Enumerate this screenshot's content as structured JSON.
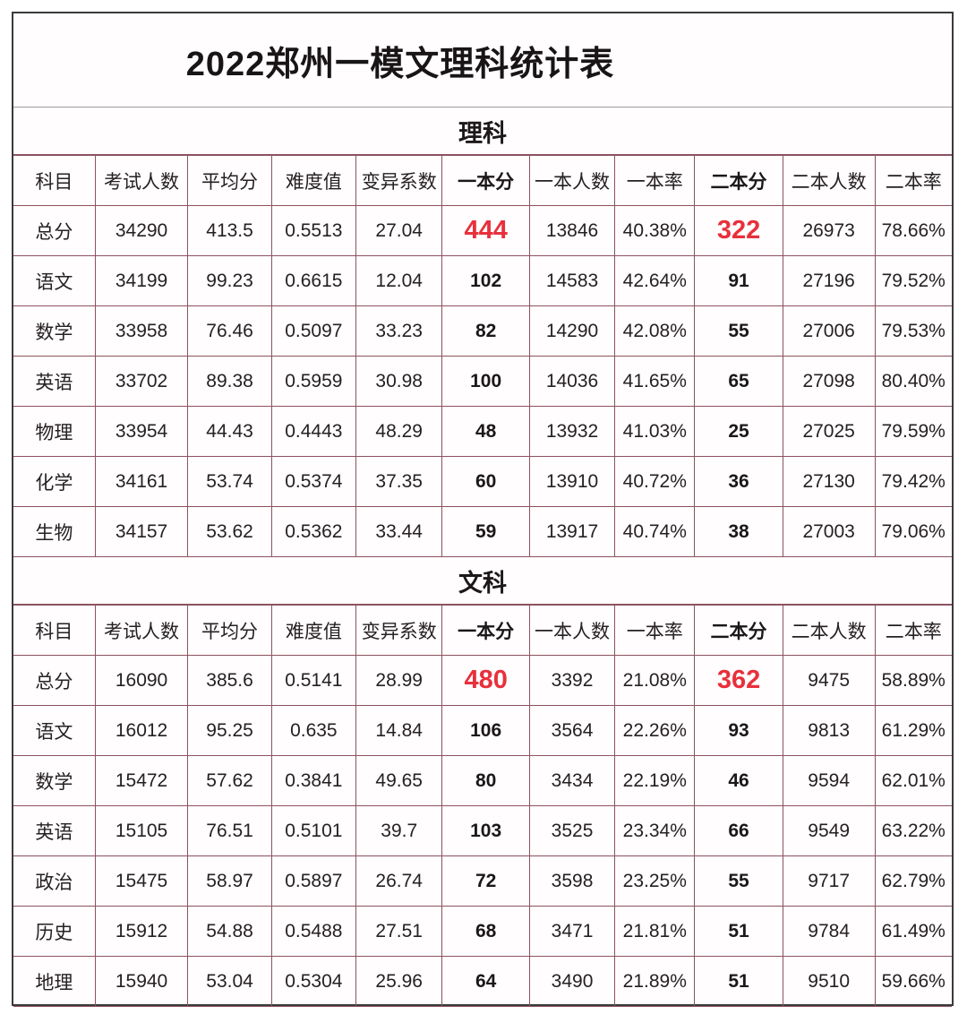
{
  "title": "2022郑州一模文理科统计表",
  "columns": [
    "科目",
    "考试人数",
    "平均分",
    "难度值",
    "变异系数",
    "一本分",
    "一本人数",
    "一本率",
    "二本分",
    "二本人数",
    "二本率"
  ],
  "bold_column_indices": [
    5,
    8
  ],
  "sections": [
    {
      "name": "理科",
      "rows": [
        [
          "总分",
          "34290",
          "413.5",
          "0.5513",
          "27.04",
          "444",
          "13846",
          "40.38%",
          "322",
          "26973",
          "78.66%"
        ],
        [
          "语文",
          "34199",
          "99.23",
          "0.6615",
          "12.04",
          "102",
          "14583",
          "42.64%",
          "91",
          "27196",
          "79.52%"
        ],
        [
          "数学",
          "33958",
          "76.46",
          "0.5097",
          "33.23",
          "82",
          "14290",
          "42.08%",
          "55",
          "27006",
          "79.53%"
        ],
        [
          "英语",
          "33702",
          "89.38",
          "0.5959",
          "30.98",
          "100",
          "14036",
          "41.65%",
          "65",
          "27098",
          "80.40%"
        ],
        [
          "物理",
          "33954",
          "44.43",
          "0.4443",
          "48.29",
          "48",
          "13932",
          "41.03%",
          "25",
          "27025",
          "79.59%"
        ],
        [
          "化学",
          "34161",
          "53.74",
          "0.5374",
          "37.35",
          "60",
          "13910",
          "40.72%",
          "36",
          "27130",
          "79.42%"
        ],
        [
          "生物",
          "34157",
          "53.62",
          "0.5362",
          "33.44",
          "59",
          "13917",
          "40.74%",
          "38",
          "27003",
          "79.06%"
        ]
      ]
    },
    {
      "name": "文科",
      "rows": [
        [
          "总分",
          "16090",
          "385.6",
          "0.5141",
          "28.99",
          "480",
          "3392",
          "21.08%",
          "362",
          "9475",
          "58.89%"
        ],
        [
          "语文",
          "16012",
          "95.25",
          "0.635",
          "14.84",
          "106",
          "3564",
          "22.26%",
          "93",
          "9813",
          "61.29%"
        ],
        [
          "数学",
          "15472",
          "57.62",
          "0.3841",
          "49.65",
          "80",
          "3434",
          "22.19%",
          "46",
          "9594",
          "62.01%"
        ],
        [
          "英语",
          "15105",
          "76.51",
          "0.5101",
          "39.7",
          "103",
          "3525",
          "23.34%",
          "66",
          "9549",
          "63.22%"
        ],
        [
          "政治",
          "15475",
          "58.97",
          "0.5897",
          "26.74",
          "72",
          "3598",
          "23.25%",
          "55",
          "9717",
          "62.79%"
        ],
        [
          "历史",
          "15912",
          "54.88",
          "0.5488",
          "27.51",
          "68",
          "3471",
          "21.81%",
          "51",
          "9784",
          "61.49%"
        ],
        [
          "地理",
          "15940",
          "53.04",
          "0.5304",
          "25.96",
          "64",
          "3490",
          "21.89%",
          "51",
          "9510",
          "59.66%"
        ]
      ]
    }
  ],
  "colors": {
    "highlight_red": "#e8303c",
    "grid_line": "#8c5260",
    "outer_border": "#3a3a3a"
  }
}
